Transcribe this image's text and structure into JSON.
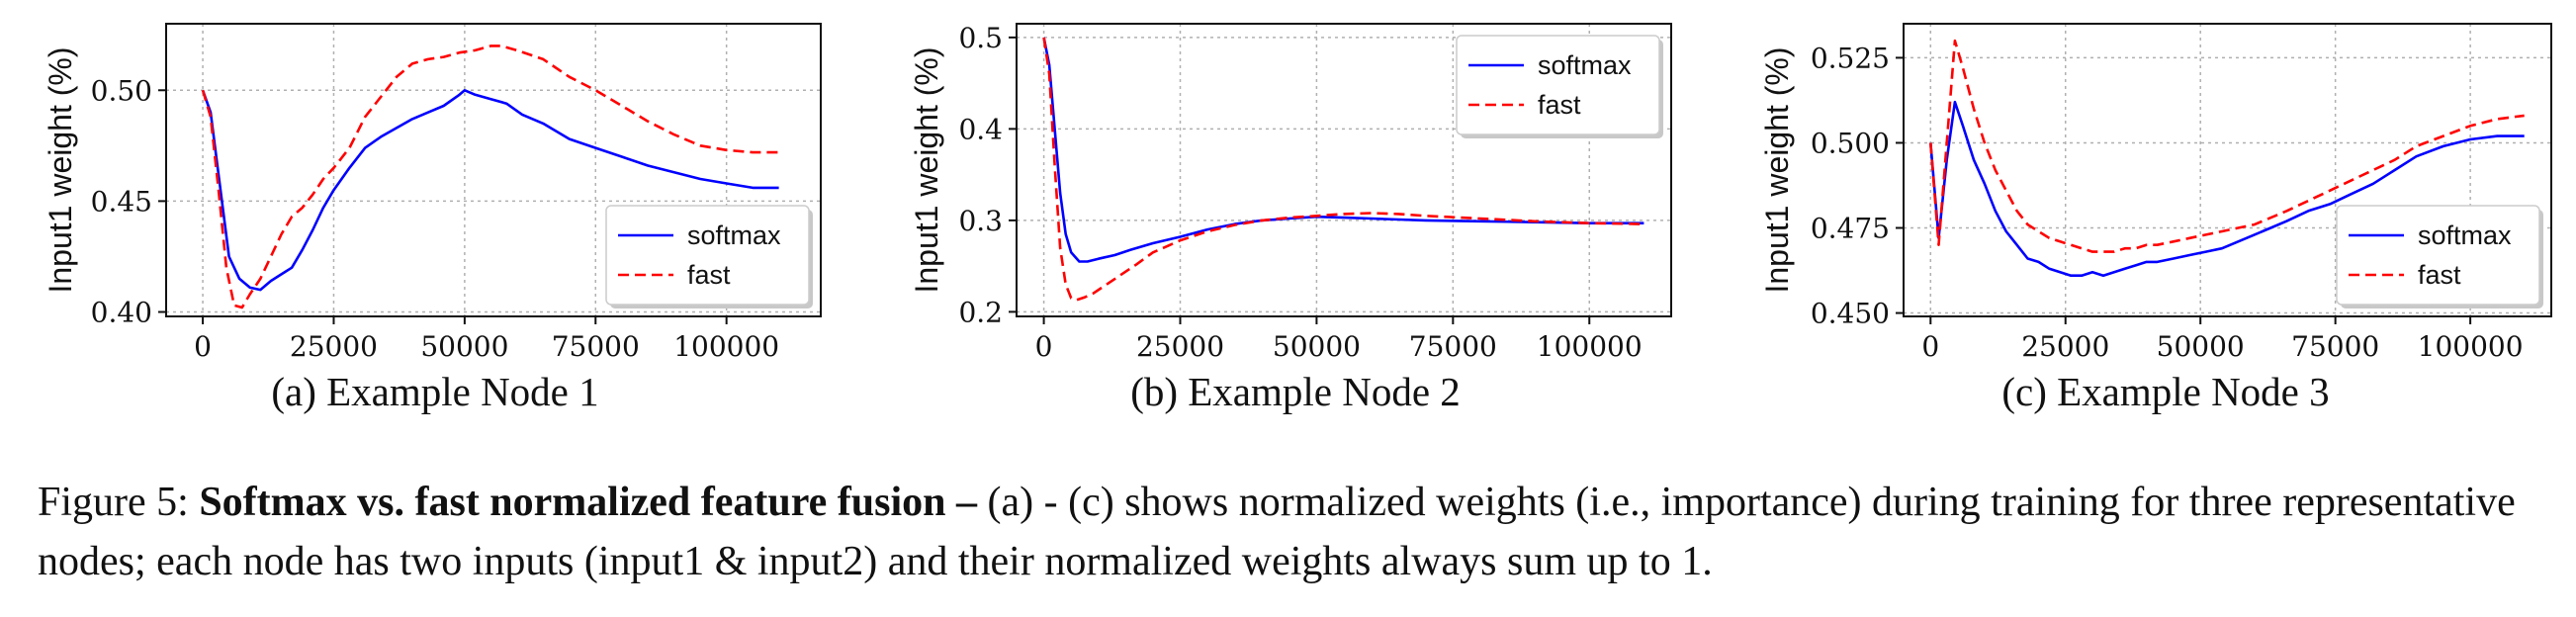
{
  "caption": {
    "prefix": "Figure 5: ",
    "bold": "Softmax vs. fast normalized feature fusion –",
    "rest": " (a) - (c) shows normalized weights (i.e., importance) during training for three representative nodes; each node has two inputs (input1 & input2) and their normalized weights always sum up to 1."
  },
  "colors": {
    "softmax": "#0000ff",
    "fast": "#ff0000"
  },
  "chart_data": [
    {
      "type": "line",
      "subcaption": "(a) Example Node 1",
      "ylabel": "Input1 weight (%)",
      "xlabel": "",
      "xlim": [
        -7000,
        118000
      ],
      "ylim": [
        0.398,
        0.53
      ],
      "xticks": [
        0,
        25000,
        50000,
        75000,
        100000
      ],
      "yticks": [
        0.4,
        0.45,
        0.5
      ],
      "ytick_labels": [
        "0.40",
        "0.45",
        "0.50"
      ],
      "grid": true,
      "legend_position": "lower-right",
      "series": [
        {
          "name": "softmax",
          "style": "solid",
          "x": [
            0,
            1500,
            3000,
            5000,
            7000,
            9000,
            11000,
            13000,
            15000,
            17000,
            19000,
            21000,
            23000,
            25000,
            28000,
            31000,
            34000,
            37000,
            40000,
            43000,
            46000,
            49000,
            50000,
            52000,
            55000,
            58000,
            61000,
            65000,
            70000,
            75000,
            80000,
            85000,
            90000,
            95000,
            100000,
            105000,
            110000
          ],
          "y": [
            0.5,
            0.49,
            0.462,
            0.425,
            0.415,
            0.411,
            0.41,
            0.414,
            0.417,
            0.42,
            0.428,
            0.437,
            0.447,
            0.455,
            0.465,
            0.474,
            0.479,
            0.483,
            0.487,
            0.49,
            0.493,
            0.498,
            0.5,
            0.498,
            0.496,
            0.494,
            0.489,
            0.485,
            0.478,
            0.474,
            0.47,
            0.466,
            0.463,
            0.46,
            0.458,
            0.456,
            0.456
          ]
        },
        {
          "name": "fast",
          "style": "dashed",
          "x": [
            0,
            1500,
            3000,
            4500,
            6000,
            7500,
            9000,
            11000,
            13000,
            15000,
            17000,
            19000,
            21000,
            23000,
            25000,
            28000,
            31000,
            34000,
            37000,
            40000,
            43000,
            46000,
            49000,
            52000,
            55000,
            57000,
            60000,
            65000,
            70000,
            75000,
            80000,
            85000,
            90000,
            95000,
            100000,
            105000,
            110000
          ],
          "y": [
            0.5,
            0.488,
            0.455,
            0.42,
            0.403,
            0.402,
            0.408,
            0.415,
            0.425,
            0.435,
            0.443,
            0.447,
            0.453,
            0.46,
            0.465,
            0.474,
            0.488,
            0.497,
            0.506,
            0.512,
            0.514,
            0.515,
            0.517,
            0.518,
            0.52,
            0.52,
            0.518,
            0.514,
            0.506,
            0.5,
            0.493,
            0.486,
            0.48,
            0.475,
            0.473,
            0.472,
            0.472
          ]
        }
      ]
    },
    {
      "type": "line",
      "subcaption": "(b) Example Node 2",
      "ylabel": "Input1 weight (%)",
      "xlabel": "",
      "xlim": [
        -5000,
        115000
      ],
      "ylim": [
        0.195,
        0.515
      ],
      "xticks": [
        0,
        25000,
        50000,
        75000,
        100000
      ],
      "yticks": [
        0.2,
        0.3,
        0.4,
        0.5
      ],
      "ytick_labels": [
        "0.2",
        "0.3",
        "0.4",
        "0.5"
      ],
      "grid": true,
      "legend_position": "upper-right",
      "series": [
        {
          "name": "softmax",
          "style": "solid",
          "x": [
            0,
            1000,
            2000,
            3000,
            4000,
            5000,
            6500,
            8000,
            10000,
            13000,
            16000,
            20000,
            25000,
            30000,
            35000,
            40000,
            45000,
            50000,
            55000,
            60000,
            65000,
            70000,
            80000,
            90000,
            100000,
            110000
          ],
          "y": [
            0.5,
            0.47,
            0.4,
            0.33,
            0.285,
            0.265,
            0.255,
            0.255,
            0.258,
            0.262,
            0.268,
            0.275,
            0.282,
            0.29,
            0.296,
            0.3,
            0.302,
            0.304,
            0.303,
            0.302,
            0.301,
            0.3,
            0.299,
            0.298,
            0.297,
            0.297
          ]
        },
        {
          "name": "fast",
          "style": "dashed",
          "x": [
            0,
            1000,
            2000,
            3000,
            4000,
            5000,
            6000,
            7500,
            9000,
            11000,
            14000,
            17000,
            20000,
            25000,
            30000,
            35000,
            40000,
            45000,
            50000,
            55000,
            60000,
            65000,
            70000,
            80000,
            90000,
            100000,
            110000
          ],
          "y": [
            0.5,
            0.46,
            0.36,
            0.27,
            0.23,
            0.215,
            0.213,
            0.216,
            0.22,
            0.228,
            0.24,
            0.252,
            0.265,
            0.278,
            0.288,
            0.295,
            0.3,
            0.303,
            0.305,
            0.307,
            0.308,
            0.307,
            0.305,
            0.302,
            0.299,
            0.297,
            0.296
          ]
        }
      ]
    },
    {
      "type": "line",
      "subcaption": "(c) Example Node 3",
      "ylabel": "Input1 weight (%)",
      "xlabel": "",
      "xlim": [
        -5000,
        115000
      ],
      "ylim": [
        0.449,
        0.535
      ],
      "xticks": [
        0,
        25000,
        50000,
        75000,
        100000
      ],
      "yticks": [
        0.45,
        0.475,
        0.5,
        0.525
      ],
      "ytick_labels": [
        "0.450",
        "0.475",
        "0.500",
        "0.525"
      ],
      "grid": true,
      "legend_position": "lower-right",
      "series": [
        {
          "name": "softmax",
          "style": "solid",
          "x": [
            0,
            1500,
            3000,
            4500,
            6000,
            8000,
            10000,
            12000,
            14000,
            16000,
            18000,
            20000,
            22000,
            24000,
            26000,
            28000,
            30000,
            32000,
            34000,
            36000,
            38000,
            40000,
            42000,
            45000,
            48000,
            51000,
            54000,
            57000,
            60000,
            63000,
            66000,
            70000,
            74000,
            78000,
            82000,
            86000,
            90000,
            95000,
            100000,
            105000,
            110000
          ],
          "y": [
            0.5,
            0.472,
            0.495,
            0.512,
            0.505,
            0.495,
            0.488,
            0.48,
            0.474,
            0.47,
            0.466,
            0.465,
            0.463,
            0.462,
            0.461,
            0.461,
            0.462,
            0.461,
            0.462,
            0.463,
            0.464,
            0.465,
            0.465,
            0.466,
            0.467,
            0.468,
            0.469,
            0.471,
            0.473,
            0.475,
            0.477,
            0.48,
            0.482,
            0.485,
            0.488,
            0.492,
            0.496,
            0.499,
            0.501,
            0.502,
            0.502
          ]
        },
        {
          "name": "fast",
          "style": "dashed",
          "x": [
            0,
            1500,
            3000,
            4500,
            6000,
            8000,
            10000,
            12000,
            14000,
            16000,
            18000,
            20000,
            22000,
            24000,
            26000,
            28000,
            30000,
            32000,
            34000,
            36000,
            38000,
            40000,
            42000,
            45000,
            48000,
            51000,
            54000,
            57000,
            60000,
            63000,
            66000,
            70000,
            74000,
            78000,
            82000,
            86000,
            90000,
            95000,
            100000,
            105000,
            110000
          ],
          "y": [
            0.5,
            0.47,
            0.5,
            0.53,
            0.522,
            0.51,
            0.5,
            0.492,
            0.486,
            0.48,
            0.476,
            0.474,
            0.472,
            0.471,
            0.47,
            0.469,
            0.468,
            0.468,
            0.468,
            0.469,
            0.469,
            0.47,
            0.47,
            0.471,
            0.472,
            0.473,
            0.474,
            0.475,
            0.476,
            0.478,
            0.48,
            0.483,
            0.486,
            0.489,
            0.492,
            0.495,
            0.499,
            0.502,
            0.505,
            0.507,
            0.508
          ]
        }
      ]
    }
  ]
}
